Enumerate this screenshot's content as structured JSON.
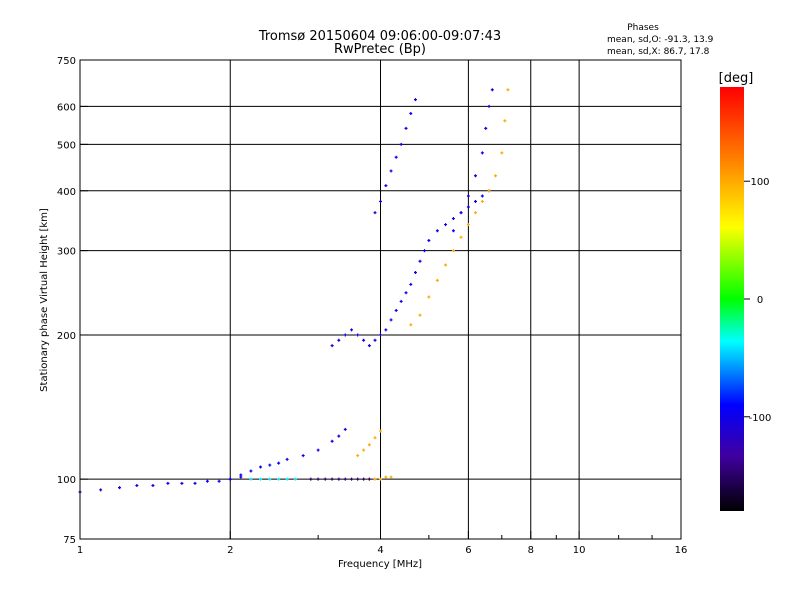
{
  "chart_data": {
    "type": "scatter",
    "title": "Tromsø 20150604 09:06:00-09:07:43",
    "subtitle": "RwPretec (Bp)",
    "stats": {
      "heading": "Phases",
      "line_o": "mean, sd,O: -91.3, 13.9",
      "line_x": "mean, sd,X:  86.7, 17.8"
    },
    "xlabel": "Frequency [MHz]",
    "ylabel": "Stationary phase Virtual Height [km]",
    "x_scale": "log",
    "y_scale": "log",
    "xlim": [
      1,
      16
    ],
    "ylim": [
      75,
      750
    ],
    "x_ticks": [
      1,
      2,
      4,
      6,
      8,
      10,
      16
    ],
    "x_tick_labels": [
      "1",
      "2",
      "4",
      "6",
      "8",
      "10",
      "16"
    ],
    "y_ticks": [
      75,
      100,
      200,
      300,
      400,
      500,
      600,
      750
    ],
    "y_tick_labels": [
      "75",
      "100",
      "200",
      "300",
      "400",
      "500",
      "600",
      "750"
    ],
    "grid": true,
    "colorbar": {
      "label": "[deg]",
      "range": [
        -180,
        180
      ],
      "ticks": [
        100,
        0,
        -100
      ],
      "tick_labels": [
        "100",
        "0",
        "-100"
      ]
    },
    "traces": [
      {
        "phase": -100,
        "x": [
          1.0,
          1.1,
          1.2,
          1.3,
          1.4,
          1.5,
          1.6,
          1.7,
          1.8,
          1.9,
          2.0,
          2.1
        ],
        "y": [
          94,
          95,
          96,
          97,
          97,
          98,
          98,
          98,
          99,
          99,
          100,
          101
        ]
      },
      {
        "phase": -100,
        "x": [
          2.0,
          2.1,
          2.2,
          2.3,
          2.4,
          2.5,
          2.6,
          2.8,
          3.0,
          3.2,
          3.3,
          3.4
        ],
        "y": [
          100,
          102,
          104,
          106,
          107,
          108,
          110,
          112,
          115,
          120,
          123,
          127
        ]
      },
      {
        "phase": -100,
        "x": [
          3.2,
          3.3,
          3.4,
          3.5,
          3.6,
          3.7,
          3.8,
          3.9,
          4.0,
          4.1,
          4.2,
          4.3,
          4.4,
          4.5,
          4.6,
          4.7,
          4.8,
          4.9,
          5.0,
          5.2,
          5.4,
          5.6,
          5.8,
          6.0,
          6.2,
          6.4,
          6.6
        ],
        "y": [
          190,
          195,
          200,
          205,
          200,
          195,
          190,
          195,
          200,
          205,
          215,
          225,
          235,
          245,
          255,
          270,
          285,
          300,
          315,
          330,
          340,
          350,
          360,
          370,
          380,
          390,
          400
        ]
      },
      {
        "phase": -100,
        "x": [
          3.9,
          4.0,
          4.1,
          4.2,
          4.3,
          4.4,
          4.5,
          4.6,
          4.7
        ],
        "y": [
          360,
          380,
          410,
          440,
          470,
          500,
          540,
          580,
          620
        ]
      },
      {
        "phase": -100,
        "x": [
          5.6,
          5.8,
          6.0,
          6.2,
          6.4,
          6.5,
          6.6,
          6.7
        ],
        "y": [
          330,
          360,
          390,
          430,
          480,
          540,
          600,
          650
        ]
      },
      {
        "phase": 100,
        "x": [
          4.6,
          4.8,
          5.0,
          5.2,
          5.4,
          5.6,
          5.8,
          6.0,
          6.2,
          6.4,
          6.6,
          6.8,
          7.0,
          7.1,
          7.2
        ],
        "y": [
          210,
          220,
          240,
          260,
          280,
          300,
          320,
          340,
          360,
          380,
          400,
          430,
          480,
          560,
          650
        ]
      },
      {
        "phase": 100,
        "x": [
          3.6,
          3.7,
          3.8,
          3.9,
          4.0
        ],
        "y": [
          112,
          115,
          118,
          122,
          126
        ]
      },
      {
        "phase": 100,
        "x": [
          3.8,
          3.9,
          4.0,
          4.1,
          4.2
        ],
        "y": [
          100,
          100,
          100,
          101,
          101
        ]
      },
      {
        "phase": -150,
        "x": [
          2.9,
          3.0,
          3.1,
          3.2,
          3.3,
          3.4,
          3.5,
          3.6,
          3.7,
          3.8
        ],
        "y": [
          100,
          100,
          100,
          100,
          100,
          100,
          100,
          100,
          100,
          100
        ]
      },
      {
        "phase": -40,
        "x": [
          2.2,
          2.3,
          2.4,
          2.5,
          2.6,
          2.7
        ],
        "y": [
          100,
          100,
          100,
          100,
          100,
          100
        ]
      }
    ]
  }
}
